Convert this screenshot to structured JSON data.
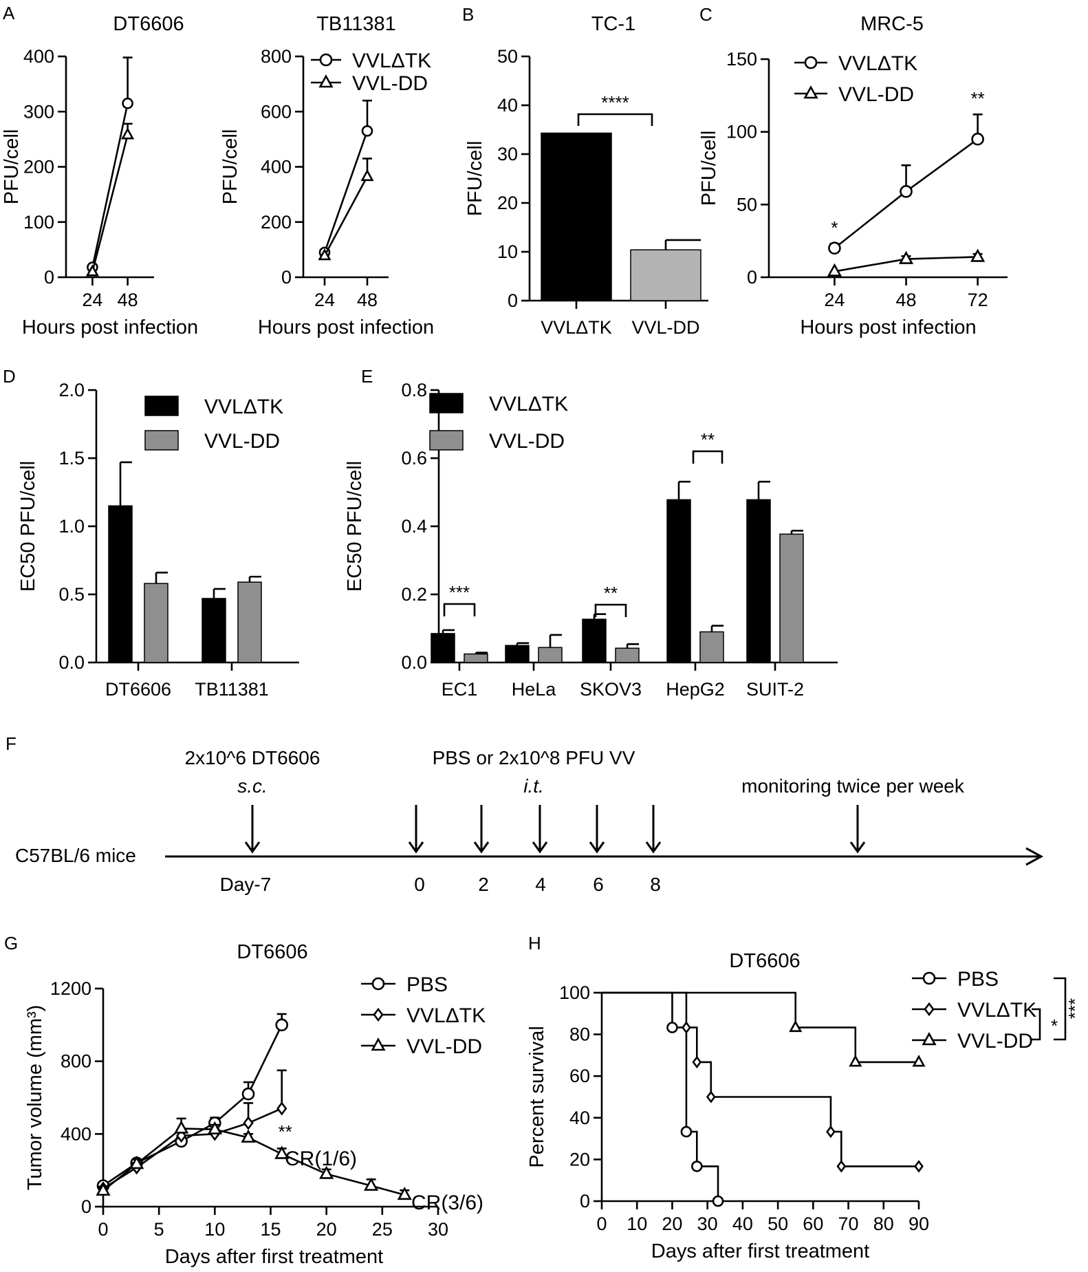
{
  "chart_data": [
    {
      "id": "A1",
      "panel": "A",
      "type": "line",
      "title": "DT6606",
      "xlabel": "Hours post infection",
      "ylabel": "PFU/cell",
      "ylim": [
        0,
        400
      ],
      "yticks": [
        0,
        100,
        200,
        300,
        400
      ],
      "xticks": [
        24,
        48
      ],
      "xlim": [
        6,
        66
      ],
      "series": [
        {
          "name": "VVLΔTK",
          "marker": "circle",
          "x": [
            24,
            48
          ],
          "y": [
            18,
            315
          ],
          "err": [
            0,
            83
          ]
        },
        {
          "name": "VVL-DD",
          "marker": "triangle",
          "x": [
            24,
            48
          ],
          "y": [
            10,
            258
          ],
          "err": [
            0,
            20
          ]
        }
      ]
    },
    {
      "id": "A2",
      "panel": "",
      "type": "line",
      "title": "TB11381",
      "xlabel": "Hours post infection",
      "ylabel": "PFU/cell",
      "ylim": [
        0,
        800
      ],
      "yticks": [
        0,
        200,
        400,
        600,
        800
      ],
      "xticks": [
        24,
        48
      ],
      "xlim": [
        12,
        60
      ],
      "series": [
        {
          "name": "VVLΔTK",
          "marker": "circle",
          "x": [
            24,
            48
          ],
          "y": [
            90,
            530
          ],
          "err": [
            0,
            110
          ]
        },
        {
          "name": "VVL-DD",
          "marker": "triangle",
          "x": [
            24,
            48
          ],
          "y": [
            78,
            365
          ],
          "err": [
            0,
            65
          ]
        }
      ]
    },
    {
      "id": "B",
      "panel": "B",
      "type": "bar",
      "title": "TC-1",
      "xlabel": "",
      "ylabel": "PFU/cell",
      "ylim": [
        0,
        50
      ],
      "yticks": [
        0,
        10,
        20,
        30,
        40,
        50
      ],
      "categories": [
        "VVLΔTK",
        "VVL-DD"
      ],
      "series": [
        {
          "name": "VVLΔTK",
          "color": "#000000",
          "values": [
            34.3,
            null
          ],
          "err": [
            0,
            null
          ]
        },
        {
          "name": "VVL-DD",
          "color": "#b3b3b3",
          "values": [
            null,
            10.4
          ],
          "err": [
            null,
            2
          ]
        }
      ],
      "annotations": [
        {
          "text": "****",
          "between": [
            0,
            1
          ]
        }
      ]
    },
    {
      "id": "C",
      "panel": "C",
      "type": "line",
      "title": "MRC-5",
      "xlabel": "Hours post infection",
      "ylabel": "PFU/cell",
      "ylim": [
        0,
        150
      ],
      "yticks": [
        0,
        50,
        100,
        150
      ],
      "xticks": [
        24,
        48,
        72
      ],
      "xlim": [
        2,
        82
      ],
      "series": [
        {
          "name": "VVLΔTK",
          "marker": "circle",
          "x": [
            24,
            48,
            72
          ],
          "y": [
            20,
            59,
            95
          ],
          "err": [
            3,
            18,
            17
          ]
        },
        {
          "name": "VVL-DD",
          "marker": "triangle",
          "x": [
            24,
            48,
            72
          ],
          "y": [
            4,
            12.5,
            14
          ],
          "err": [
            0,
            2,
            2
          ]
        }
      ],
      "annotations": [
        {
          "text": "*",
          "x": 24
        },
        {
          "text": "**",
          "x": 72
        }
      ]
    },
    {
      "id": "D",
      "panel": "D",
      "type": "bar",
      "title": "",
      "xlabel": "",
      "ylabel": "EC50 PFU/cell",
      "ylim": [
        0,
        2.0
      ],
      "yticks": [
        "0.0",
        "0.5",
        "1.0",
        "1.5",
        "2.0"
      ],
      "categories": [
        "DT6606",
        "TB11381"
      ],
      "series": [
        {
          "name": "VVLΔTK",
          "color": "#000000",
          "values": [
            1.15,
            0.47
          ],
          "err": [
            0.32,
            0.07
          ]
        },
        {
          "name": "VVL-DD",
          "color": "#8f8f8f",
          "values": [
            0.58,
            0.59
          ],
          "err": [
            0.08,
            0.04
          ]
        }
      ]
    },
    {
      "id": "E",
      "panel": "E",
      "type": "bar",
      "title": "",
      "xlabel": "",
      "ylabel": "EC50 PFU/cell",
      "ylim": [
        0,
        0.8
      ],
      "yticks": [
        "0.0",
        "0.2",
        "0.4",
        "0.6",
        "0.8"
      ],
      "categories": [
        "EC1",
        "HeLa",
        "SKOV3",
        "HepG2",
        "SUIT-2"
      ],
      "series": [
        {
          "name": "VVLΔTK",
          "color": "#000000",
          "values": [
            0.085,
            0.05,
            0.127,
            0.478,
            0.478
          ],
          "err": [
            0.01,
            0.007,
            0.015,
            0.053,
            0.053
          ]
        },
        {
          "name": "VVL-DD",
          "color": "#8f8f8f",
          "values": [
            0.025,
            0.044,
            0.042,
            0.09,
            0.377
          ],
          "err": [
            0.004,
            0.037,
            0.012,
            0.018,
            0.01
          ]
        }
      ],
      "annotations": [
        {
          "text": "***",
          "category": 0
        },
        {
          "text": "**",
          "category": 2
        },
        {
          "text": "**",
          "category": 3
        }
      ]
    },
    {
      "id": "G",
      "panel": "G",
      "type": "line",
      "title": "DT6606",
      "xlabel": "Days after first treatment",
      "ylabel": "Tumor volume (mm³)",
      "ylim": [
        0,
        1200
      ],
      "yticks": [
        0,
        400,
        800,
        1200
      ],
      "xlim": [
        0,
        30
      ],
      "xticks": [
        0,
        5,
        10,
        15,
        20,
        25,
        30
      ],
      "series": [
        {
          "name": "PBS",
          "marker": "circle",
          "x": [
            0,
            3,
            7,
            10,
            13,
            16
          ],
          "y": [
            115,
            240,
            360,
            460,
            620,
            1000
          ],
          "err": [
            10,
            20,
            25,
            30,
            65,
            60
          ]
        },
        {
          "name": "VVLΔTK",
          "marker": "diamond",
          "x": [
            0,
            3,
            7,
            10,
            13,
            16
          ],
          "y": [
            100,
            215,
            390,
            400,
            460,
            540
          ],
          "err": [
            10,
            25,
            20,
            25,
            110,
            210
          ]
        },
        {
          "name": "VVL-DD",
          "marker": "triangle",
          "x": [
            0,
            3,
            7,
            10,
            13,
            16,
            20,
            24,
            27
          ],
          "y": [
            88,
            235,
            430,
            425,
            380,
            290,
            180,
            115,
            65
          ],
          "err": [
            8,
            25,
            55,
            25,
            20,
            30,
            25,
            35,
            25
          ]
        }
      ],
      "annotations": [
        {
          "text": "CR(1/6)",
          "series": "VVLΔTK"
        },
        {
          "text": "CR(3/6)",
          "series": "VVL-DD"
        },
        {
          "text": "**",
          "x": 16
        }
      ]
    },
    {
      "id": "H",
      "panel": "H",
      "type": "line",
      "subtype": "step",
      "title": "DT6606",
      "xlabel": "Days after first treatment",
      "ylabel": "Percent survival",
      "ylim": [
        0,
        100
      ],
      "yticks": [
        0,
        20,
        40,
        60,
        80,
        100
      ],
      "xlim": [
        0,
        90
      ],
      "xticks": [
        0,
        10,
        20,
        30,
        40,
        50,
        60,
        70,
        80,
        90
      ],
      "series": [
        {
          "name": "PBS",
          "marker": "circle",
          "x": [
            0,
            20,
            24,
            27,
            33
          ],
          "y": [
            100,
            83.3,
            33.3,
            16.7,
            0
          ]
        },
        {
          "name": "VVLΔTK",
          "marker": "diamond",
          "x": [
            0,
            24,
            27,
            31,
            65,
            68,
            90
          ],
          "y": [
            100,
            83.3,
            66.7,
            50,
            33.3,
            16.7,
            16.7
          ]
        },
        {
          "name": "VVL-DD",
          "marker": "triangle",
          "x": [
            0,
            55,
            72,
            90
          ],
          "y": [
            100,
            83.3,
            66.7,
            66.7
          ]
        }
      ],
      "annotations": [
        {
          "text": "*",
          "between": [
            "VVLΔTK",
            "VVL-DD"
          ]
        },
        {
          "text": "***",
          "between": [
            "PBS",
            "VVL-DD"
          ]
        }
      ]
    }
  ],
  "timeline": {
    "panel": "F",
    "subject": "C57BL/6 mice",
    "inoculation": "2x10^6 DT6606",
    "inoculation_route": "s.c.",
    "treatment": "PBS or 2x10^8 PFU VV",
    "treatment_route": "i.t.",
    "monitoring": "monitoring twice per week",
    "day_labels": [
      "Day-7",
      "0",
      "2",
      "4",
      "6",
      "8"
    ]
  }
}
